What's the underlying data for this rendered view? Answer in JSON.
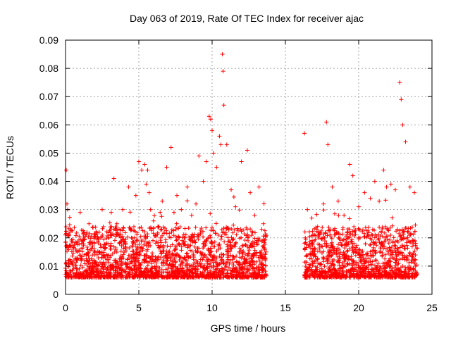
{
  "chart_data": {
    "type": "scatter",
    "title": "Day 063 of 2019, Rate Of TEC Index for receiver ajac",
    "xlabel": "GPS time / hours",
    "ylabel": "ROTI / TECUs",
    "xlim": [
      0,
      25
    ],
    "ylim": [
      0,
      0.09
    ],
    "x_ticks": [
      "0",
      "5",
      "10",
      "15",
      "20",
      "25"
    ],
    "y_ticks": [
      "0",
      "0.01",
      "0.02",
      "0.03",
      "0.04",
      "0.05",
      "0.06",
      "0.07",
      "0.08",
      "0.09"
    ],
    "grid": true,
    "marker": "+",
    "color": "#ff0000",
    "data_gap_hours": [
      13.7,
      16.3
    ],
    "series": [
      {
        "x": [
          0.05,
          0.1,
          0.15,
          0.2,
          0.3,
          0.5,
          0.8,
          1.0,
          1.1,
          1.3,
          1.6,
          2.0,
          2.3,
          2.5,
          2.8,
          3.1,
          3.3,
          3.5,
          3.9,
          4.3,
          4.5,
          4.8,
          5.0,
          5.2,
          5.4,
          5.5,
          5.6,
          5.7,
          5.8,
          6.0,
          6.3,
          6.6,
          6.9,
          7.2,
          7.4,
          7.6,
          7.9,
          8.3,
          8.6,
          8.9,
          9.1,
          9.4,
          9.6,
          9.8,
          9.9,
          10.0,
          10.1,
          10.3,
          10.5,
          10.6,
          10.7,
          10.75,
          10.8,
          11.0,
          11.3,
          11.6,
          12.0,
          12.4,
          12.6,
          12.9,
          13.2,
          13.5,
          16.3,
          16.5,
          16.8,
          17.2,
          17.6,
          17.8,
          17.9,
          18.2,
          18.6,
          19.0,
          19.4,
          19.6,
          20.0,
          20.4,
          20.8,
          21.1,
          21.4,
          21.7,
          21.9,
          22.2,
          22.5,
          22.8,
          22.9,
          23.0,
          23.2,
          23.5,
          23.8
        ],
        "y": [
          0.044,
          0.032,
          0.03,
          0.012,
          0.022,
          0.011,
          0.015,
          0.029,
          0.018,
          0.012,
          0.025,
          0.014,
          0.022,
          0.03,
          0.018,
          0.016,
          0.041,
          0.025,
          0.03,
          0.038,
          0.02,
          0.035,
          0.047,
          0.044,
          0.046,
          0.039,
          0.044,
          0.036,
          0.03,
          0.026,
          0.024,
          0.033,
          0.045,
          0.052,
          0.029,
          0.035,
          0.03,
          0.038,
          0.028,
          0.032,
          0.049,
          0.04,
          0.047,
          0.063,
          0.062,
          0.058,
          0.05,
          0.045,
          0.056,
          0.053,
          0.085,
          0.079,
          0.067,
          0.053,
          0.037,
          0.031,
          0.047,
          0.051,
          0.036,
          0.028,
          0.038,
          0.025,
          0.057,
          0.03,
          0.027,
          0.024,
          0.032,
          0.061,
          0.053,
          0.038,
          0.033,
          0.028,
          0.046,
          0.042,
          0.031,
          0.036,
          0.034,
          0.04,
          0.033,
          0.044,
          0.038,
          0.039,
          0.037,
          0.075,
          0.069,
          0.06,
          0.054,
          0.038,
          0.036
        ]
      }
    ]
  }
}
